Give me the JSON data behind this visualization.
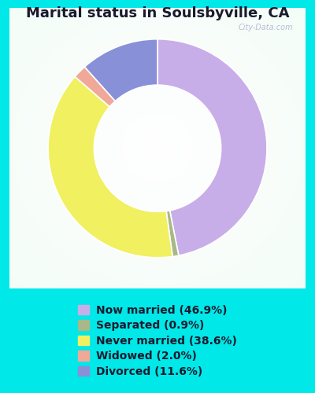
{
  "title": "Marital status in Soulsbyville, CA",
  "categories": [
    "Now married",
    "Separated",
    "Never married",
    "Widowed",
    "Divorced"
  ],
  "values": [
    46.9,
    0.9,
    38.6,
    2.0,
    11.6
  ],
  "pie_order": [
    0,
    1,
    2,
    3,
    4
  ],
  "colors": [
    "#c8aee8",
    "#a8b888",
    "#f0f060",
    "#f0a898",
    "#8890d8"
  ],
  "legend_labels": [
    "Now married (46.9%)",
    "Separated (0.9%)",
    "Never married (38.6%)",
    "Widowed (2.0%)",
    "Divorced (11.6%)"
  ],
  "bg_cyan": "#00e8e8",
  "chart_panel_color": "#e0f0e8",
  "title_fontsize": 13,
  "legend_fontsize": 10,
  "watermark": "City-Data.com"
}
